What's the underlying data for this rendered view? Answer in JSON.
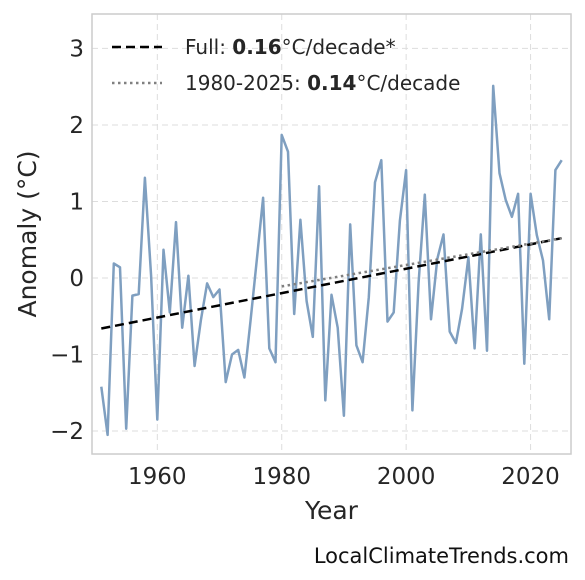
{
  "chart_data": {
    "type": "line",
    "xlabel": "Year",
    "ylabel": "Anomaly (°C)",
    "xlim": [
      1949.5,
      2026.5
    ],
    "ylim": [
      -2.3,
      3.45
    ],
    "xticks": [
      1960,
      1980,
      2000,
      2020
    ],
    "yticks": [
      -2,
      -1,
      0,
      1,
      2,
      3
    ],
    "ytick_labels": [
      "−2",
      "−1",
      "0",
      "1",
      "2",
      "3"
    ],
    "grid": true,
    "legend_position": "top-left",
    "series": [
      {
        "style": "solid",
        "color": "#7f9fc0",
        "x": [
          1951,
          1952,
          1953,
          1954,
          1955,
          1956,
          1957,
          1958,
          1959,
          1960,
          1961,
          1962,
          1963,
          1964,
          1965,
          1966,
          1967,
          1968,
          1969,
          1970,
          1971,
          1972,
          1973,
          1974,
          1975,
          1976,
          1977,
          1978,
          1979,
          1980,
          1981,
          1982,
          1983,
          1984,
          1985,
          1986,
          1987,
          1988,
          1989,
          1990,
          1991,
          1992,
          1993,
          1994,
          1995,
          1996,
          1997,
          1998,
          1999,
          2000,
          2001,
          2002,
          2003,
          2004,
          2005,
          2006,
          2007,
          2008,
          2009,
          2010,
          2011,
          2012,
          2013,
          2014,
          2015,
          2016,
          2017,
          2018,
          2019,
          2020,
          2021,
          2022,
          2023,
          2024,
          2025
        ],
        "y": [
          -1.42,
          -2.05,
          0.19,
          0.14,
          -1.97,
          -0.23,
          -0.21,
          1.31,
          0.03,
          -1.85,
          0.37,
          -0.45,
          0.73,
          -0.65,
          0.03,
          -1.15,
          -0.55,
          -0.07,
          -0.25,
          -0.15,
          -1.36,
          -1.0,
          -0.94,
          -1.3,
          -0.55,
          0.25,
          1.05,
          -0.92,
          -1.1,
          1.87,
          1.65,
          -0.47,
          0.76,
          -0.3,
          -0.77,
          1.2,
          -1.6,
          -0.22,
          -0.65,
          -1.8,
          0.7,
          -0.88,
          -1.1,
          -0.25,
          1.25,
          1.54,
          -0.57,
          -0.45,
          0.75,
          1.41,
          -1.73,
          -0.06,
          1.09,
          -0.54,
          0.25,
          0.57,
          -0.7,
          -0.85,
          -0.4,
          0.27,
          -0.92,
          0.57,
          -0.95,
          2.51,
          1.37,
          1.02,
          0.8,
          1.1,
          -1.12,
          1.1,
          0.56,
          0.23,
          -0.54,
          1.41,
          1.54
        ]
      },
      {
        "style": "dashed",
        "color": "#000000",
        "x": [
          1951,
          2025
        ],
        "y": [
          -0.66,
          0.52
        ]
      },
      {
        "style": "dotted",
        "color": "#808080",
        "x": [
          1980,
          2025
        ],
        "y": [
          -0.11,
          0.52
        ]
      }
    ],
    "legend": [
      {
        "prefix": "Full: ",
        "value": "0.16",
        "suffix": "°C/decade*",
        "style": "dashed",
        "color": "#000000"
      },
      {
        "prefix": "1980-2025: ",
        "value": "0.14",
        "suffix": "°C/decade",
        "style": "dotted",
        "color": "#808080"
      }
    ]
  },
  "credit": "LocalClimateTrends.com"
}
